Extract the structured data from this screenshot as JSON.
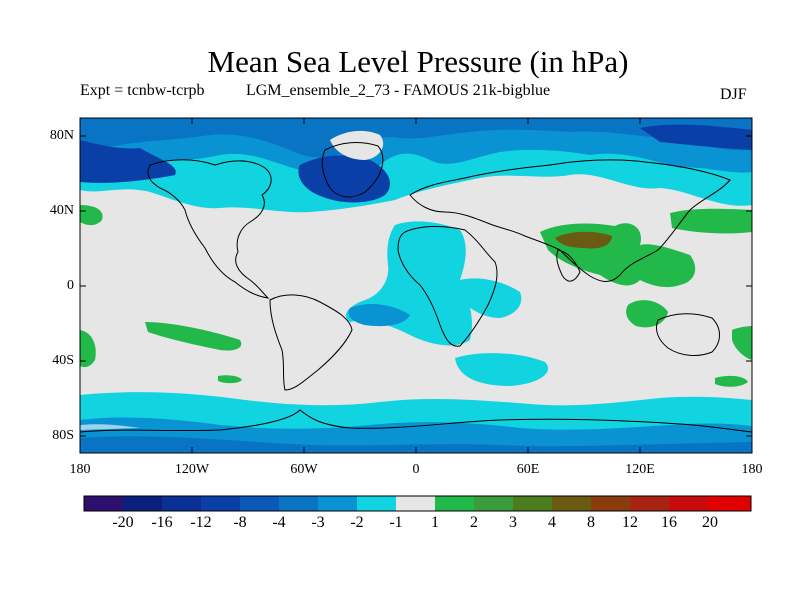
{
  "title": "Mean Sea Level Pressure (in hPa)",
  "subtitle_left": "Expt = tcnbw-tcrpb",
  "subtitle_mid": "LGM_ensemble_2_73 - FAMOUS 21k-bigblue",
  "season": "DJF",
  "lat_ticks": [
    "80N",
    "40N",
    "0",
    "40S",
    "80S"
  ],
  "lon_ticks": [
    "180",
    "120W",
    "60W",
    "0",
    "60E",
    "120E",
    "180"
  ],
  "colorbar": {
    "labels": [
      "-20",
      "-16",
      "-12",
      "-8",
      "-4",
      "-3",
      "-2",
      "-1",
      "1",
      "2",
      "3",
      "4",
      "8",
      "12",
      "16",
      "20"
    ],
    "colors": [
      "#2d0f6e",
      "#0b1f7d",
      "#0a2f95",
      "#0a3fa8",
      "#0b58b8",
      "#0a74c4",
      "#0a93d2",
      "#12d3e0",
      "#e6e6e6",
      "#22b84a",
      "#3a9c3a",
      "#4b7d1e",
      "#6b5a12",
      "#8a3d0c",
      "#a82310",
      "#c80a0a",
      "#e00000"
    ]
  },
  "colors": {
    "background": "#e6e6e6",
    "neg_deep": "#0b3fa8",
    "neg_mid": "#0a74c4",
    "neg_light": "#0a93d2",
    "neg_cyan": "#12d3e0",
    "pos_green": "#22b84a",
    "pos_dark": "#4b7d1e",
    "pos_brown": "#6b5a12"
  }
}
